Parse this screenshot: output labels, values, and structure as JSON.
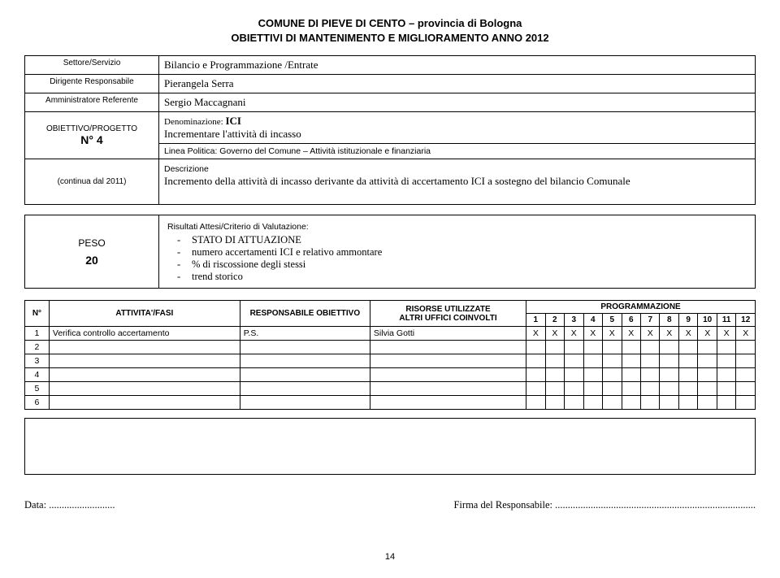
{
  "header": {
    "line1": "COMUNE DI PIEVE DI CENTO – provincia di Bologna",
    "line2": "OBIETTIVI DI MANTENIMENTO E MIGLIORAMENTO ANNO 2012"
  },
  "info": {
    "labels": {
      "settore": "Settore/Servizio",
      "dirigente": "Dirigente Responsabile",
      "amministratore": "Amministratore Referente",
      "obiettivo1": "OBIETTIVO/PROGETTO",
      "obiettivo2_prefix": "N°",
      "obiettivo_num": "4",
      "continua": "(continua dal 2011)"
    },
    "values": {
      "settore": "Bilancio e Programmazione /Entrate",
      "dirigente": "Pierangela Serra",
      "amministratore": "Sergio Maccagnani",
      "denominazione_label": "Denominazione:",
      "denominazione_value": "ICI",
      "incrementare": "Incrementare l'attività di incasso",
      "linea_politica": "Linea Politica: Governo del Comune – Attività istituzionale e finanziaria",
      "descrizione_label": "Descrizione",
      "descrizione_text": "Incremento della attività di incasso derivante da attività di accertamento ICI a sostegno del bilancio Comunale"
    }
  },
  "peso": {
    "label": "PESO",
    "value": "20",
    "risultati_label": "Risultati Attesi/Criterio di Valutazione:",
    "items": [
      "STATO DI ATTUAZIONE",
      "numero accertamenti ICI e relativo ammontare",
      "% di riscossione degli stessi",
      "trend storico"
    ]
  },
  "activity_table": {
    "headers": {
      "n": "N°",
      "attivita": "ATTIVITA'/FASI",
      "responsabile": "RESPONSABILE OBIETTIVO",
      "risorse1": "RISORSE UTILIZZATE",
      "risorse2": "ALTRI UFFICI COINVOLTI",
      "programmazione": "PROGRAMMAZIONE",
      "months": [
        "1",
        "2",
        "3",
        "4",
        "5",
        "6",
        "7",
        "8",
        "9",
        "10",
        "11",
        "12"
      ]
    },
    "rows": [
      {
        "n": "1",
        "attivita": "Verifica controllo accertamento",
        "resp": "P.S.",
        "risorse": "Silvia Gotti",
        "m": [
          "X",
          "X",
          "X",
          "X",
          "X",
          "X",
          "X",
          "X",
          "X",
          "X",
          "X",
          "X"
        ]
      },
      {
        "n": "2",
        "attivita": "",
        "resp": "",
        "risorse": "",
        "m": [
          "",
          "",
          "",
          "",
          "",
          "",
          "",
          "",
          "",
          "",
          "",
          ""
        ]
      },
      {
        "n": "3",
        "attivita": "",
        "resp": "",
        "risorse": "",
        "m": [
          "",
          "",
          "",
          "",
          "",
          "",
          "",
          "",
          "",
          "",
          "",
          ""
        ]
      },
      {
        "n": "4",
        "attivita": "",
        "resp": "",
        "risorse": "",
        "m": [
          "",
          "",
          "",
          "",
          "",
          "",
          "",
          "",
          "",
          "",
          "",
          ""
        ]
      },
      {
        "n": "5",
        "attivita": "",
        "resp": "",
        "risorse": "",
        "m": [
          "",
          "",
          "",
          "",
          "",
          "",
          "",
          "",
          "",
          "",
          "",
          ""
        ]
      },
      {
        "n": "6",
        "attivita": "",
        "resp": "",
        "risorse": "",
        "m": [
          "",
          "",
          "",
          "",
          "",
          "",
          "",
          "",
          "",
          "",
          "",
          ""
        ]
      }
    ]
  },
  "footer": {
    "data_label": "Data: ..........................",
    "firma_label": "Firma del Responsabile: ..............................................................................."
  },
  "page_number": "14"
}
